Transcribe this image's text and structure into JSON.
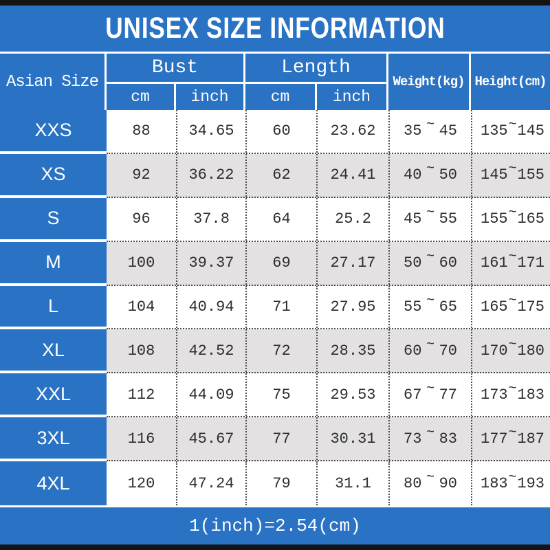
{
  "title": "UNISEX SIZE INFORMATION",
  "footer_note": "1(inch)=2.54(cm)",
  "colors": {
    "primary_blue": "#2a72c4",
    "row_alt_gray": "#e3e1e2",
    "bar_black": "#141414"
  },
  "table": {
    "corner_header": "Asian Size",
    "bust_group": {
      "label": "Bust",
      "sub_cm": "cm",
      "sub_inch": "inch"
    },
    "length_group": {
      "label": "Length",
      "sub_cm": "cm",
      "sub_inch": "inch"
    },
    "weight_header": "Weight(kg)",
    "height_header": "Height(cm)",
    "range_separator": "~",
    "rows": [
      {
        "size": "XXS",
        "bust_cm": "88",
        "bust_inch": "34.65",
        "length_cm": "60",
        "length_inch": "23.62",
        "weight_min": "35",
        "weight_max": "45",
        "height_min": "135",
        "height_max": "145"
      },
      {
        "size": "XS",
        "bust_cm": "92",
        "bust_inch": "36.22",
        "length_cm": "62",
        "length_inch": "24.41",
        "weight_min": "40",
        "weight_max": "50",
        "height_min": "145",
        "height_max": "155"
      },
      {
        "size": "S",
        "bust_cm": "96",
        "bust_inch": "37.8",
        "length_cm": "64",
        "length_inch": "25.2",
        "weight_min": "45",
        "weight_max": "55",
        "height_min": "155",
        "height_max": "165"
      },
      {
        "size": "M",
        "bust_cm": "100",
        "bust_inch": "39.37",
        "length_cm": "69",
        "length_inch": "27.17",
        "weight_min": "50",
        "weight_max": "60",
        "height_min": "161",
        "height_max": "171"
      },
      {
        "size": "L",
        "bust_cm": "104",
        "bust_inch": "40.94",
        "length_cm": "71",
        "length_inch": "27.95",
        "weight_min": "55",
        "weight_max": "65",
        "height_min": "165",
        "height_max": "175"
      },
      {
        "size": "XL",
        "bust_cm": "108",
        "bust_inch": "42.52",
        "length_cm": "72",
        "length_inch": "28.35",
        "weight_min": "60",
        "weight_max": "70",
        "height_min": "170",
        "height_max": "180"
      },
      {
        "size": "XXL",
        "bust_cm": "112",
        "bust_inch": "44.09",
        "length_cm": "75",
        "length_inch": "29.53",
        "weight_min": "67",
        "weight_max": "77",
        "height_min": "173",
        "height_max": "183"
      },
      {
        "size": "3XL",
        "bust_cm": "116",
        "bust_inch": "45.67",
        "length_cm": "77",
        "length_inch": "30.31",
        "weight_min": "73",
        "weight_max": "83",
        "height_min": "177",
        "height_max": "187"
      },
      {
        "size": "4XL",
        "bust_cm": "120",
        "bust_inch": "47.24",
        "length_cm": "79",
        "length_inch": "31.1",
        "weight_min": "80",
        "weight_max": "90",
        "height_min": "183",
        "height_max": "193"
      }
    ]
  }
}
